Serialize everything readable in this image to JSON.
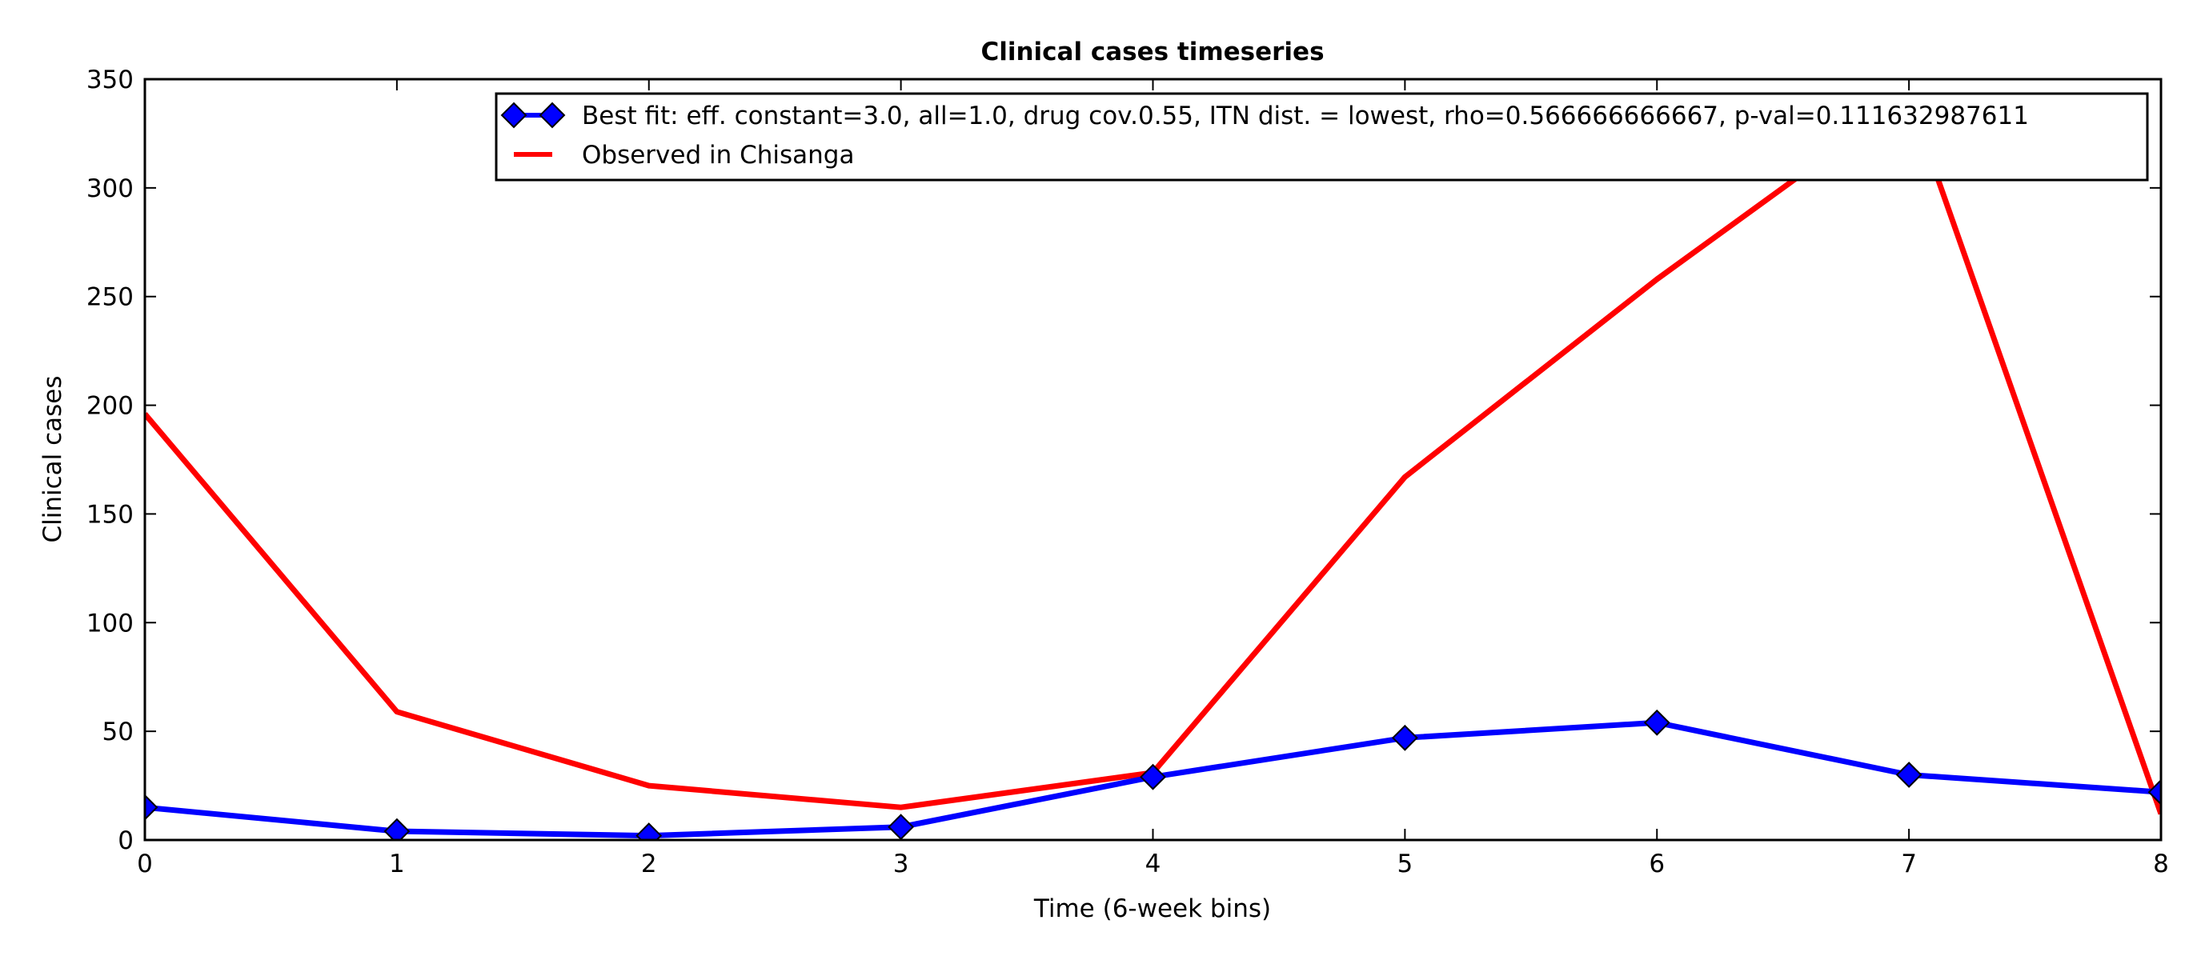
{
  "chart_data": {
    "type": "line",
    "title": "Clinical cases timeseries",
    "xlabel": "Time (6-week bins)",
    "ylabel": "Clinical cases",
    "xlim": [
      0,
      8
    ],
    "ylim": [
      0,
      350
    ],
    "x_ticks": [
      "0",
      "1",
      "2",
      "3",
      "4",
      "5",
      "6",
      "7",
      "8"
    ],
    "y_ticks": [
      "0",
      "50",
      "100",
      "150",
      "200",
      "250",
      "300",
      "350"
    ],
    "grid": false,
    "legend_position": "top-right",
    "series": [
      {
        "name": "Best fit: eff. constant=3.0, all=1.0, drug cov.0.55, ITN dist. = lowest, rho=0.566666666667, p-val=0.111632987611",
        "color": "#0000ff",
        "marker": "diamond",
        "x": [
          0,
          1,
          2,
          3,
          4,
          5,
          6,
          7,
          8
        ],
        "y": [
          15,
          4,
          2,
          6,
          29,
          47,
          54,
          30,
          22
        ]
      },
      {
        "name": "Observed in Chisanga",
        "color": "#ff0000",
        "marker": "none",
        "x": [
          0,
          1,
          2,
          3,
          4,
          5,
          6,
          7,
          8
        ],
        "y": [
          196,
          59,
          25,
          15,
          31,
          167,
          258,
          342,
          12
        ]
      }
    ]
  }
}
